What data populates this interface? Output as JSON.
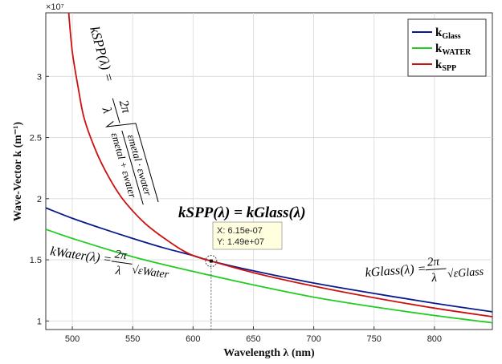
{
  "chart_data": {
    "type": "line",
    "xlabel": "Wavelength λ (nm)",
    "ylabel": "Wave-Vector  k  (m⁻¹)",
    "y_exponent": "×10⁷",
    "xlim": [
      478,
      848
    ],
    "ylim": [
      0.93,
      3.52
    ],
    "xticks": [
      500,
      550,
      600,
      650,
      700,
      750,
      800
    ],
    "yticks": [
      1,
      1.5,
      2,
      2.5,
      3
    ],
    "ytick_labels": [
      "1",
      "1.5",
      "2",
      "2.5",
      "3"
    ],
    "grid": true,
    "legend_position": "top-right",
    "series": [
      {
        "name": "k_Glass",
        "legend_main": "k",
        "legend_sub": "Glass",
        "color": "#0a1a8c",
        "x": [
          478,
          500,
          525,
          550,
          575,
          600,
          615,
          650,
          700,
          750,
          800,
          848
        ],
        "y": [
          1.925,
          1.84,
          1.755,
          1.675,
          1.6,
          1.535,
          1.49,
          1.41,
          1.31,
          1.225,
          1.145,
          1.075
        ]
      },
      {
        "name": "k_WATER",
        "legend_main": "k",
        "legend_sub": "WATER",
        "color": "#22cc22",
        "x": [
          478,
          500,
          550,
          600,
          650,
          700,
          750,
          800,
          848
        ],
        "y": [
          1.75,
          1.675,
          1.525,
          1.405,
          1.295,
          1.195,
          1.115,
          1.045,
          0.985
        ]
      },
      {
        "name": "k_SPP",
        "legend_main": "k",
        "legend_sub": "SPP",
        "color": "#cc1111",
        "x": [
          497,
          500,
          505,
          510,
          520,
          530,
          540,
          550,
          560,
          570,
          580,
          590,
          600,
          615,
          650,
          700,
          750,
          800,
          848
        ],
        "y": [
          3.52,
          3.2,
          2.9,
          2.65,
          2.38,
          2.18,
          2.02,
          1.9,
          1.8,
          1.72,
          1.65,
          1.585,
          1.535,
          1.49,
          1.395,
          1.285,
          1.19,
          1.105,
          1.035
        ]
      }
    ],
    "datatip": {
      "x_value": 615,
      "y_value": 1.49,
      "x_text": "X: 6.15e-07",
      "y_text": "Y: 1.49e+07"
    },
    "annotations": {
      "ksp_formula_lhs": "kSPP(λ) = ",
      "ksp_formula_num": "2π",
      "ksp_formula_den": "λ",
      "ksp_formula_inner_num": "εmetal · εwater",
      "ksp_formula_inner_den": "εmetal + εwater",
      "intersection_left": "kSPP(λ) = kGlass(λ)",
      "water_lhs": "kWater(λ) = ",
      "water_num": "2π",
      "water_den": "λ",
      "water_root": "√εWater",
      "glass_lhs": "kGlass(λ) = ",
      "glass_num": "2π",
      "glass_den": "λ",
      "glass_root": "√εGlass"
    }
  }
}
